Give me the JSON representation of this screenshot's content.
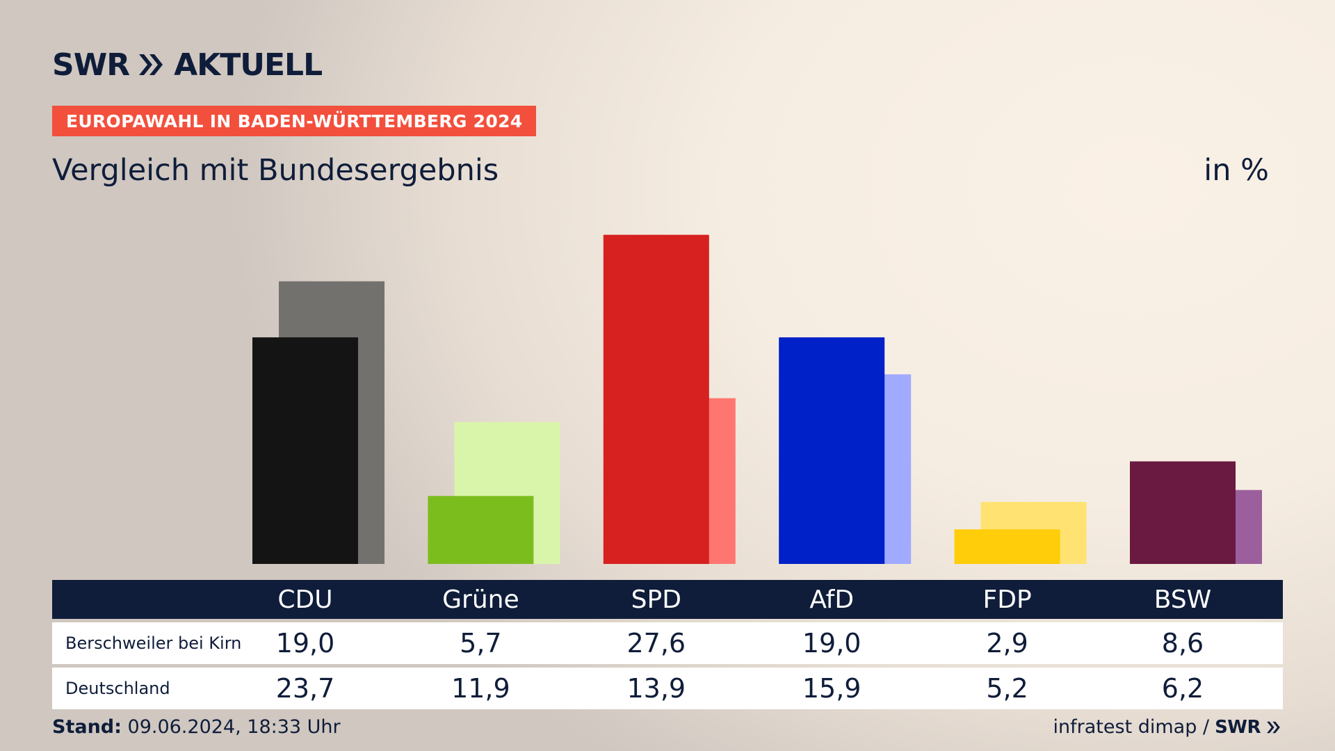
{
  "header": {
    "logo_text": "SWR",
    "logo_suffix": "AKTUELL",
    "badge": "EUROPAWAHL IN BADEN-WÜRTTEMBERG 2024",
    "subtitle": "Vergleich mit Bundesergebnis",
    "unit": "in %"
  },
  "footer": {
    "stand_label": "Stand:",
    "stand_value": "09.06.2024, 18:33 Uhr",
    "source": "infratest dimap /",
    "brand": "SWR"
  },
  "colors": {
    "navy": "#0f1d3a",
    "badge": "#f2503d"
  },
  "chart_data": {
    "type": "bar",
    "categories": [
      "CDU",
      "Grüne",
      "SPD",
      "AfD",
      "FDP",
      "BSW"
    ],
    "series": [
      {
        "name": "Berschweiler bei Kirn",
        "values": [
          19.0,
          5.7,
          27.6,
          19.0,
          2.9,
          8.6
        ],
        "labels": [
          "19,0",
          "5,7",
          "27,6",
          "19,0",
          "2,9",
          "8,6"
        ]
      },
      {
        "name": "Deutschland",
        "values": [
          23.7,
          11.9,
          13.9,
          15.9,
          5.2,
          6.2
        ],
        "labels": [
          "23,7",
          "11,9",
          "13,9",
          "15,9",
          "5,2",
          "6,2"
        ]
      }
    ],
    "colors_local": [
      "#141414",
      "#7cbd1e",
      "#d72020",
      "#0020c8",
      "#ffcd0a",
      "#6a1940"
    ],
    "colors_national": [
      "#73716e",
      "#d9f5aa",
      "#ff7670",
      "#a0aafe",
      "#ffe272",
      "#9a5f9c"
    ],
    "ylim": [
      0,
      30
    ],
    "grid": false
  }
}
